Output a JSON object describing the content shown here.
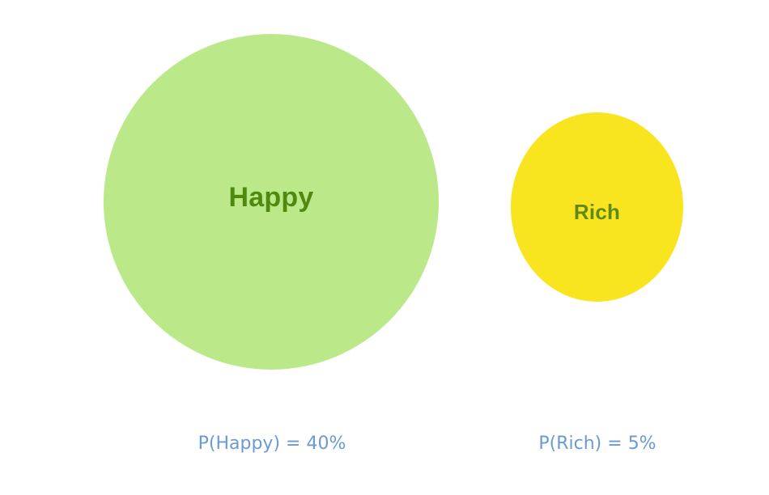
{
  "diagram": {
    "sets": [
      {
        "label": "Happy",
        "probability_text": "P(Happy) = 40%",
        "probability": 0.4,
        "fill_color": "#bbe98a",
        "label_color": "#4f8a0f"
      },
      {
        "label": "Rich",
        "probability_text": "P(Rich) = 5%",
        "probability": 0.05,
        "fill_color": "#f8e51f",
        "label_color": "#5f8a1a"
      }
    ],
    "caption_color": "#6a9ad6"
  }
}
